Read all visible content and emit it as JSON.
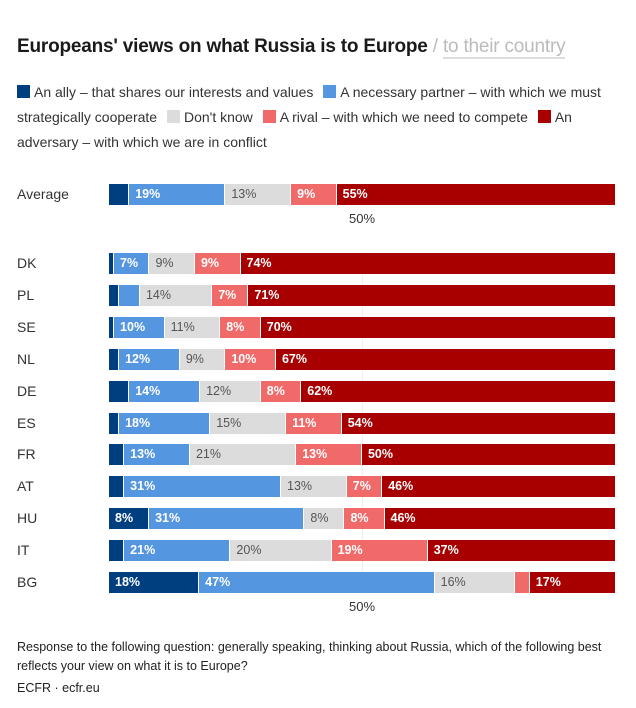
{
  "header": {
    "title": "Europeans' views on what Russia is to Europe",
    "separator": "/",
    "alt_view_link": "to their country"
  },
  "colors": {
    "ally": "#003f7f",
    "partner": "#5596e0",
    "dont_know": "#dcdcdc",
    "rival": "#f06a6a",
    "adversary": "#a80000"
  },
  "chart_data": {
    "type": "bar",
    "orientation": "horizontal",
    "stacked": true,
    "title": "Europeans' views on what Russia is to Europe",
    "xlabel": "",
    "ylabel": "",
    "xlim": [
      0,
      100
    ],
    "reference_line": {
      "value": 50,
      "label": "50%"
    },
    "legend_position": "top",
    "series": [
      {
        "key": "ally",
        "name": "An ally – that shares our interests and values"
      },
      {
        "key": "partner",
        "name": "A necessary partner – with which we must strategically cooperate"
      },
      {
        "key": "dont_know",
        "name": "Don't know"
      },
      {
        "key": "rival",
        "name": "A rival – with which we need to compete"
      },
      {
        "key": "adversary",
        "name": "An adversary – with which we are in conflict"
      }
    ],
    "average": {
      "category": "Average",
      "values": [
        4,
        19,
        13,
        9,
        55
      ],
      "labels": [
        "",
        "19%",
        "13%",
        "9%",
        "55%"
      ]
    },
    "categories": [
      "DK",
      "PL",
      "SE",
      "NL",
      "DE",
      "ES",
      "FR",
      "AT",
      "HU",
      "IT",
      "BG"
    ],
    "rows": [
      {
        "category": "DK",
        "values": [
          1,
          7,
          9,
          9,
          74
        ],
        "labels": [
          "",
          "7%",
          "9%",
          "9%",
          "74%"
        ]
      },
      {
        "category": "PL",
        "values": [
          2,
          4,
          14,
          7,
          71
        ],
        "labels": [
          "",
          "",
          "14%",
          "7%",
          "71%"
        ]
      },
      {
        "category": "SE",
        "values": [
          1,
          10,
          11,
          8,
          70
        ],
        "labels": [
          "",
          "10%",
          "11%",
          "8%",
          "70%"
        ]
      },
      {
        "category": "NL",
        "values": [
          2,
          12,
          9,
          10,
          67
        ],
        "labels": [
          "",
          "12%",
          "9%",
          "10%",
          "67%"
        ]
      },
      {
        "category": "DE",
        "values": [
          4,
          14,
          12,
          8,
          62
        ],
        "labels": [
          "",
          "14%",
          "12%",
          "8%",
          "62%"
        ]
      },
      {
        "category": "ES",
        "values": [
          2,
          18,
          15,
          11,
          54
        ],
        "labels": [
          "",
          "18%",
          "15%",
          "11%",
          "54%"
        ]
      },
      {
        "category": "FR",
        "values": [
          3,
          13,
          21,
          13,
          50
        ],
        "labels": [
          "",
          "13%",
          "21%",
          "13%",
          "50%"
        ]
      },
      {
        "category": "AT",
        "values": [
          3,
          31,
          13,
          7,
          46
        ],
        "labels": [
          "",
          "31%",
          "13%",
          "7%",
          "46%"
        ]
      },
      {
        "category": "HU",
        "values": [
          8,
          31,
          8,
          8,
          46
        ],
        "labels": [
          "8%",
          "31%",
          "8%",
          "8%",
          "46%"
        ]
      },
      {
        "category": "IT",
        "values": [
          3,
          21,
          20,
          19,
          37
        ],
        "labels": [
          "",
          "21%",
          "20%",
          "19%",
          "37%"
        ]
      },
      {
        "category": "BG",
        "values": [
          18,
          47,
          16,
          3,
          17
        ],
        "labels": [
          "18%",
          "47%",
          "16%",
          "",
          "17%"
        ]
      }
    ]
  },
  "axis_label": "50%",
  "note": "Response to the following question: generally speaking, thinking about Russia, which of the following best reflects your view on what it is to Europe?",
  "source": "ECFR · ecfr.eu"
}
